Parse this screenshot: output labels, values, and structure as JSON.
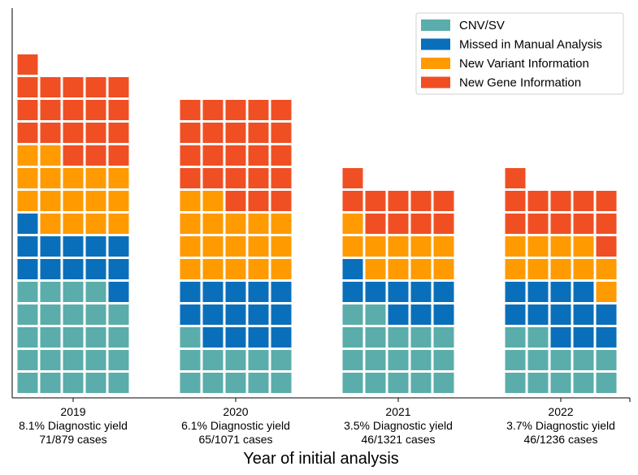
{
  "chart_data": {
    "type": "waffle",
    "xlabel": "Year of initial analysis",
    "ylabel": "",
    "grid": false,
    "legend_position": "top-right",
    "columns_per_group": 5,
    "categories": [
      {
        "year": "2019",
        "yield_label": "8.1% Diagnostic yield",
        "cases_label": "71/879 cases",
        "diagnosed": 71,
        "total": 879
      },
      {
        "year": "2020",
        "yield_label": "6.1% Diagnostic yield",
        "cases_label": "65/1071 cases",
        "diagnosed": 65,
        "total": 1071
      },
      {
        "year": "2021",
        "yield_label": "3.5% Diagnostic yield",
        "cases_label": "46/1321 cases",
        "diagnosed": 46,
        "total": 1321
      },
      {
        "year": "2022",
        "yield_label": "3.7% Diagnostic yield",
        "cases_label": "46/1236 cases",
        "diagnosed": 46,
        "total": 1236
      }
    ],
    "series": [
      {
        "name": "CNV/SV",
        "color": "#5aadaa",
        "values": [
          24,
          11,
          17,
          12
        ]
      },
      {
        "name": "Missed in Manual Analysis",
        "color": "#0a6fba",
        "values": [
          12,
          14,
          9,
          12
        ]
      },
      {
        "name": "New Variant Information",
        "color": "#ff9a00",
        "values": [
          16,
          17,
          10,
          10
        ]
      },
      {
        "name": "New Gene Information",
        "color": "#f04f23",
        "values": [
          19,
          23,
          10,
          12
        ]
      }
    ]
  }
}
